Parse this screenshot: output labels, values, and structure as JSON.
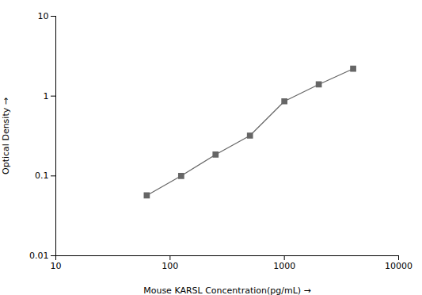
{
  "chart_data": {
    "type": "line",
    "x": [
      62.5,
      125,
      250,
      500,
      1000,
      2000,
      4000
    ],
    "series": [
      {
        "values": [
          0.057,
          0.1,
          0.185,
          0.32,
          0.86,
          1.4,
          2.2
        ],
        "color": "#666666",
        "marker": "square"
      }
    ],
    "xlabel": "Mouse KARSL Concentration(pg/mL)",
    "ylabel": "Optical Density",
    "xlim": [
      10,
      10000
    ],
    "ylim": [
      0.01,
      10
    ],
    "xticks": [
      10,
      100,
      1000,
      10000
    ],
    "yticks": [
      0.01,
      0.1,
      1,
      10
    ],
    "log": true
  }
}
